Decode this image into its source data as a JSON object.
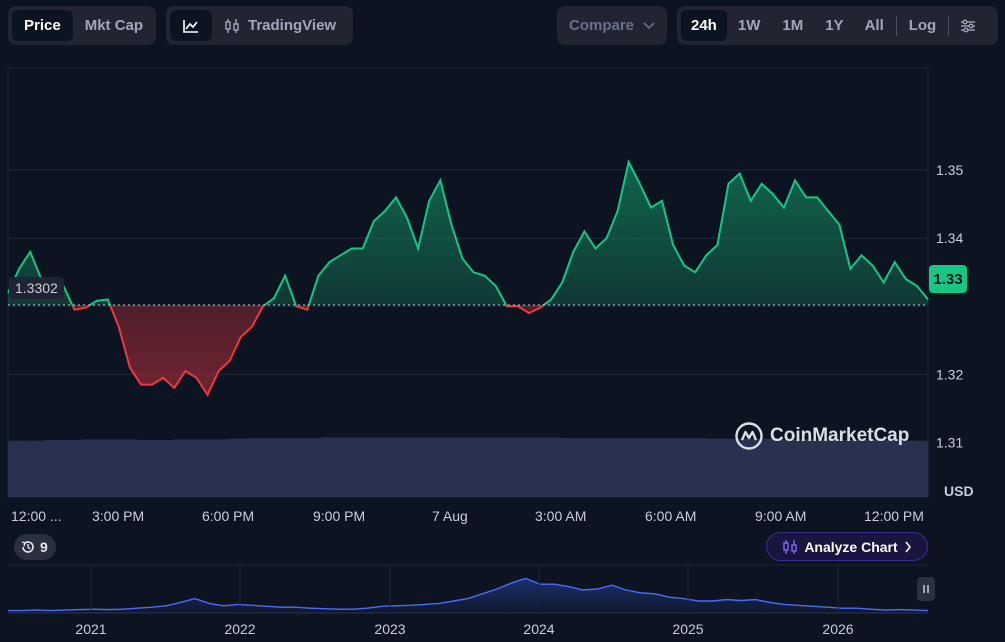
{
  "toolbar": {
    "price_label": "Price",
    "mktcap_label": "Mkt Cap",
    "tradingview_label": "TradingView",
    "compare_label": "Compare",
    "ranges": [
      "24h",
      "1W",
      "1M",
      "1Y",
      "All"
    ],
    "log_label": "Log"
  },
  "reference_price": "1.3302",
  "current_price": "1.33",
  "currency_label": "USD",
  "history_count": "9",
  "analyze_label": "Analyze Chart",
  "watermark": "CoinMarketCap",
  "colors": {
    "up": "#16c784",
    "down": "#ea3943",
    "accent": "#7b6cf6"
  },
  "chart_data": [
    {
      "type": "area",
      "baseline": 1.3302,
      "ylim": [
        1.302,
        1.365
      ],
      "yticks": [
        1.31,
        1.32,
        1.33,
        1.34,
        1.35
      ],
      "ylabel": "USD",
      "xticks": [
        "12:00 ...",
        "3:00 PM",
        "6:00 PM",
        "9:00 PM",
        "7 Aug",
        "3:00 AM",
        "6:00 AM",
        "9:00 AM",
        "12:00 PM"
      ],
      "x": [
        0,
        0.3,
        0.6,
        0.9,
        1.2,
        1.5,
        1.8,
        2.1,
        2.4,
        2.7,
        3,
        3.3,
        3.6,
        3.9,
        4.2,
        4.5,
        4.8,
        5.1,
        5.4,
        5.7,
        6,
        6.3,
        6.6,
        6.9,
        7.2,
        7.5,
        7.8,
        8.1,
        8.4,
        8.7,
        9,
        9.3,
        9.6,
        9.9,
        10.2,
        10.5,
        10.8,
        11.1,
        11.4,
        11.7,
        12,
        12.3,
        12.6,
        12.9,
        13.2,
        13.5,
        13.8,
        14.1,
        14.4,
        14.7,
        15,
        15.3,
        15.6,
        15.9,
        16.2,
        16.5,
        16.8,
        17.1,
        17.4,
        17.7,
        18,
        18.3,
        18.6,
        18.9,
        19.2,
        19.5,
        19.8,
        20.1,
        20.4,
        20.7,
        21,
        21.3,
        21.6,
        21.9,
        22.2,
        22.5,
        22.8,
        23.1,
        23.4,
        23.7,
        24,
        24.3,
        24.6,
        24.9
      ],
      "values": [
        1.332,
        1.3355,
        1.338,
        1.334,
        1.332,
        1.333,
        1.3295,
        1.3298,
        1.3308,
        1.331,
        1.327,
        1.321,
        1.3185,
        1.3185,
        1.3195,
        1.318,
        1.3205,
        1.3195,
        1.317,
        1.3205,
        1.322,
        1.3255,
        1.327,
        1.33,
        1.3312,
        1.3345,
        1.33,
        1.3295,
        1.3345,
        1.3365,
        1.3375,
        1.3385,
        1.3385,
        1.3425,
        1.344,
        1.346,
        1.343,
        1.3385,
        1.3455,
        1.3485,
        1.342,
        1.337,
        1.335,
        1.3345,
        1.333,
        1.33,
        1.33,
        1.329,
        1.3298,
        1.331,
        1.3335,
        1.338,
        1.341,
        1.3385,
        1.34,
        1.344,
        1.3512,
        1.348,
        1.3445,
        1.3455,
        1.339,
        1.336,
        1.335,
        1.3375,
        1.339,
        1.348,
        1.3495,
        1.3455,
        1.348,
        1.3465,
        1.3445,
        1.3485,
        1.346,
        1.346,
        1.344,
        1.342,
        1.3355,
        1.3375,
        1.336,
        1.3335,
        1.3365,
        1.334,
        1.333,
        1.331
      ]
    },
    {
      "type": "bar",
      "title": "",
      "note": "volume bars (24h)",
      "values_relative": [
        0.88,
        0.88,
        0.89,
        0.89,
        0.9,
        0.9,
        0.9,
        0.89,
        0.89,
        0.9,
        0.9,
        0.9,
        0.91,
        0.92,
        0.92,
        0.92,
        0.92,
        0.93,
        0.93,
        0.93,
        0.93,
        0.93,
        0.93,
        0.93,
        0.93,
        0.93,
        0.93,
        0.93,
        0.93,
        0.93,
        0.92,
        0.92,
        0.92,
        0.92,
        0.92,
        0.92,
        0.92,
        0.92,
        0.91,
        0.91,
        0.91,
        0.91,
        0.9,
        0.9,
        0.9,
        0.89,
        0.89,
        0.89,
        0.88,
        0.88
      ]
    },
    {
      "type": "area",
      "xticks": [
        "2021",
        "2022",
        "2023",
        "2024",
        "2025",
        "2026"
      ],
      "values": [
        0.05,
        0.05,
        0.06,
        0.05,
        0.06,
        0.07,
        0.08,
        0.07,
        0.08,
        0.1,
        0.12,
        0.15,
        0.22,
        0.3,
        0.2,
        0.15,
        0.18,
        0.16,
        0.14,
        0.12,
        0.12,
        0.1,
        0.09,
        0.08,
        0.08,
        0.1,
        0.14,
        0.15,
        0.16,
        0.18,
        0.2,
        0.25,
        0.3,
        0.4,
        0.5,
        0.62,
        0.72,
        0.6,
        0.6,
        0.55,
        0.48,
        0.5,
        0.58,
        0.48,
        0.42,
        0.4,
        0.33,
        0.3,
        0.25,
        0.25,
        0.28,
        0.26,
        0.28,
        0.22,
        0.18,
        0.16,
        0.14,
        0.12,
        0.1,
        0.1,
        0.08,
        0.06,
        0.07,
        0.06,
        0.05
      ]
    }
  ]
}
